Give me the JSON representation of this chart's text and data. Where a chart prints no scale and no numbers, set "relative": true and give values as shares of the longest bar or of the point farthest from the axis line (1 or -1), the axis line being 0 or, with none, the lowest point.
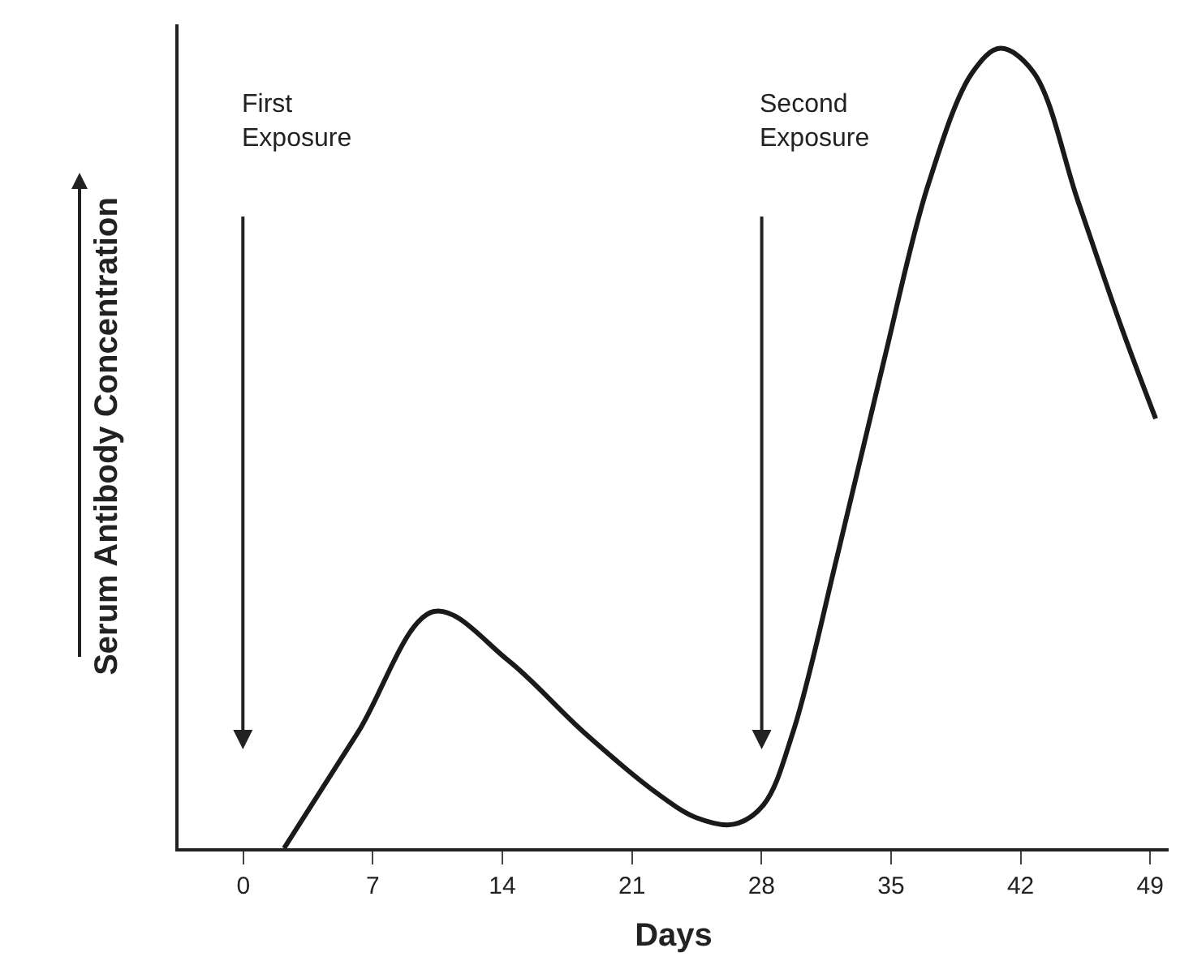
{
  "chart_data": {
    "type": "line",
    "relative": true,
    "xlabel": "Days",
    "ylabel": "Serum Antibody Concentration",
    "x": [
      2.2,
      6.2,
      10.3,
      14.3,
      18.4,
      22.4,
      24.5,
      26.5,
      28.1,
      29.7,
      32.1,
      34.6,
      37.0,
      39.4,
      40.9,
      42.7,
      45.1,
      47.5,
      49.3
    ],
    "series": [
      {
        "color": "#1a1a1a",
        "values": [
          0,
          0.145,
          0.296,
          0.235,
          0.145,
          0.068,
          0.038,
          0.03,
          0.054,
          0.145,
          0.366,
          0.608,
          0.829,
          0.97,
          1.0,
          0.97,
          0.809,
          0.648,
          0.537
        ]
      }
    ],
    "xlim": [
      -3.5,
      50
    ],
    "xticks": [
      0,
      7,
      14,
      21,
      28,
      35,
      42,
      49
    ],
    "annotations": [
      "First\nExposure",
      "Second\nExposure"
    ],
    "tick_labels": "x",
    "marker": "none",
    "line_style": "solid"
  }
}
